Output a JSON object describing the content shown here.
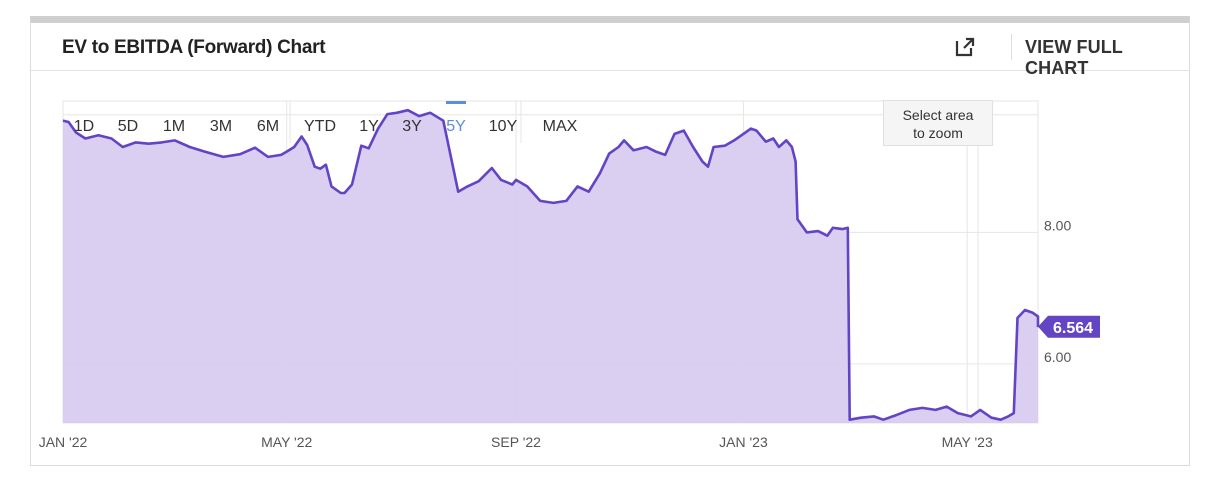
{
  "header": {
    "title": "EV to EBITDA (Forward) Chart",
    "view_full_label": "VIEW FULL CHART",
    "external_icon": "external-link-icon"
  },
  "range_buttons": [
    "1D",
    "5D",
    "1M",
    "3M",
    "6M",
    "YTD",
    "1Y",
    "3Y",
    "5Y",
    "10Y",
    "MAX"
  ],
  "active_range": "5Y",
  "zoom_hint": [
    "Select area",
    "to zoom"
  ],
  "colors": {
    "line": "#6244c4",
    "fill": "#d8ccf0",
    "accent": "#5b8fd6",
    "badge": "#6244c4"
  },
  "chart_data": {
    "type": "area",
    "title": "EV to EBITDA (Forward) Chart",
    "xlabel": "",
    "ylabel": "",
    "x_ticks": [
      "JAN '22",
      "MAY '22",
      "SEP '22",
      "JAN '23",
      "MAY '23"
    ],
    "x_tick_dates": [
      "2022-01-01",
      "2022-05-01",
      "2022-09-01",
      "2023-01-01",
      "2023-05-01"
    ],
    "y_ticks": [
      "8.00",
      "6.00"
    ],
    "y_tick_values": [
      8.0,
      6.0
    ],
    "xlim": [
      "2022-01-01",
      "2023-06-08"
    ],
    "ylim": [
      5.1,
      10.0
    ],
    "last_value_label": "6.564",
    "series": [
      {
        "values": [
          [
            "2022-01-01",
            9.7
          ],
          [
            "2022-01-04",
            9.68
          ],
          [
            "2022-01-08",
            9.52
          ],
          [
            "2022-01-13",
            9.43
          ],
          [
            "2022-01-20",
            9.48
          ],
          [
            "2022-01-27",
            9.43
          ],
          [
            "2022-02-02",
            9.3
          ],
          [
            "2022-02-09",
            9.37
          ],
          [
            "2022-02-16",
            9.35
          ],
          [
            "2022-02-23",
            9.37
          ],
          [
            "2022-03-02",
            9.4
          ],
          [
            "2022-03-10",
            9.3
          ],
          [
            "2022-03-18",
            9.23
          ],
          [
            "2022-03-28",
            9.15
          ],
          [
            "2022-04-06",
            9.19
          ],
          [
            "2022-04-14",
            9.29
          ],
          [
            "2022-04-21",
            9.15
          ],
          [
            "2022-04-28",
            9.18
          ],
          [
            "2022-05-01",
            9.23
          ],
          [
            "2022-05-05",
            9.3
          ],
          [
            "2022-05-09",
            9.46
          ],
          [
            "2022-05-12",
            9.33
          ],
          [
            "2022-05-16",
            9.0
          ],
          [
            "2022-05-19",
            8.97
          ],
          [
            "2022-05-22",
            9.03
          ],
          [
            "2022-05-25",
            8.7
          ],
          [
            "2022-05-30",
            8.6
          ],
          [
            "2022-06-01",
            8.6
          ],
          [
            "2022-06-05",
            8.73
          ],
          [
            "2022-06-10",
            9.32
          ],
          [
            "2022-06-14",
            9.28
          ],
          [
            "2022-06-19",
            9.58
          ],
          [
            "2022-06-24",
            9.8
          ],
          [
            "2022-06-29",
            9.82
          ],
          [
            "2022-07-05",
            9.86
          ],
          [
            "2022-07-11",
            9.77
          ],
          [
            "2022-07-17",
            9.82
          ],
          [
            "2022-07-24",
            9.7
          ],
          [
            "2022-08-01",
            8.62
          ],
          [
            "2022-08-06",
            8.7
          ],
          [
            "2022-08-12",
            8.78
          ],
          [
            "2022-08-19",
            8.98
          ],
          [
            "2022-08-24",
            8.8
          ],
          [
            "2022-08-30",
            8.73
          ],
          [
            "2022-09-01",
            8.8
          ],
          [
            "2022-09-07",
            8.7
          ],
          [
            "2022-09-14",
            8.48
          ],
          [
            "2022-09-21",
            8.45
          ],
          [
            "2022-09-28",
            8.48
          ],
          [
            "2022-10-04",
            8.7
          ],
          [
            "2022-10-10",
            8.62
          ],
          [
            "2022-10-16",
            8.9
          ],
          [
            "2022-10-21",
            9.2
          ],
          [
            "2022-10-26",
            9.3
          ],
          [
            "2022-10-29",
            9.4
          ],
          [
            "2022-11-03",
            9.25
          ],
          [
            "2022-11-10",
            9.3
          ],
          [
            "2022-11-15",
            9.23
          ],
          [
            "2022-11-20",
            9.18
          ],
          [
            "2022-11-25",
            9.5
          ],
          [
            "2022-11-30",
            9.55
          ],
          [
            "2022-12-05",
            9.3
          ],
          [
            "2022-12-10",
            9.08
          ],
          [
            "2022-12-13",
            9.0
          ],
          [
            "2022-12-16",
            9.3
          ],
          [
            "2022-12-22",
            9.32
          ],
          [
            "2022-12-27",
            9.4
          ],
          [
            "2023-01-01",
            9.5
          ],
          [
            "2023-01-05",
            9.58
          ],
          [
            "2023-01-08",
            9.55
          ],
          [
            "2023-01-13",
            9.38
          ],
          [
            "2023-01-17",
            9.43
          ],
          [
            "2023-01-20",
            9.3
          ],
          [
            "2023-01-24",
            9.4
          ],
          [
            "2023-01-27",
            9.3
          ],
          [
            "2023-01-29",
            9.08
          ],
          [
            "2023-01-30",
            8.2
          ],
          [
            "2023-02-04",
            8.0
          ],
          [
            "2023-02-10",
            8.02
          ],
          [
            "2023-02-15",
            7.95
          ],
          [
            "2023-02-18",
            8.07
          ],
          [
            "2023-02-23",
            8.05
          ],
          [
            "2023-02-26",
            8.07
          ],
          [
            "2023-02-27",
            5.15
          ],
          [
            "2023-03-05",
            5.18
          ],
          [
            "2023-03-12",
            5.2
          ],
          [
            "2023-03-17",
            5.15
          ],
          [
            "2023-03-24",
            5.22
          ],
          [
            "2023-03-31",
            5.3
          ],
          [
            "2023-04-07",
            5.33
          ],
          [
            "2023-04-14",
            5.3
          ],
          [
            "2023-04-20",
            5.35
          ],
          [
            "2023-04-26",
            5.25
          ],
          [
            "2023-05-03",
            5.2
          ],
          [
            "2023-05-08",
            5.3
          ],
          [
            "2023-05-14",
            5.18
          ],
          [
            "2023-05-19",
            5.15
          ],
          [
            "2023-05-23",
            5.2
          ],
          [
            "2023-05-26",
            5.25
          ],
          [
            "2023-05-28",
            6.7
          ],
          [
            "2023-06-01",
            6.82
          ],
          [
            "2023-06-05",
            6.78
          ],
          [
            "2023-06-08",
            6.72
          ],
          [
            "2023-06-08",
            6.7
          ],
          [
            "2023-06-08",
            6.6
          ],
          [
            "2023-06-08",
            6.56
          ]
        ]
      }
    ]
  }
}
